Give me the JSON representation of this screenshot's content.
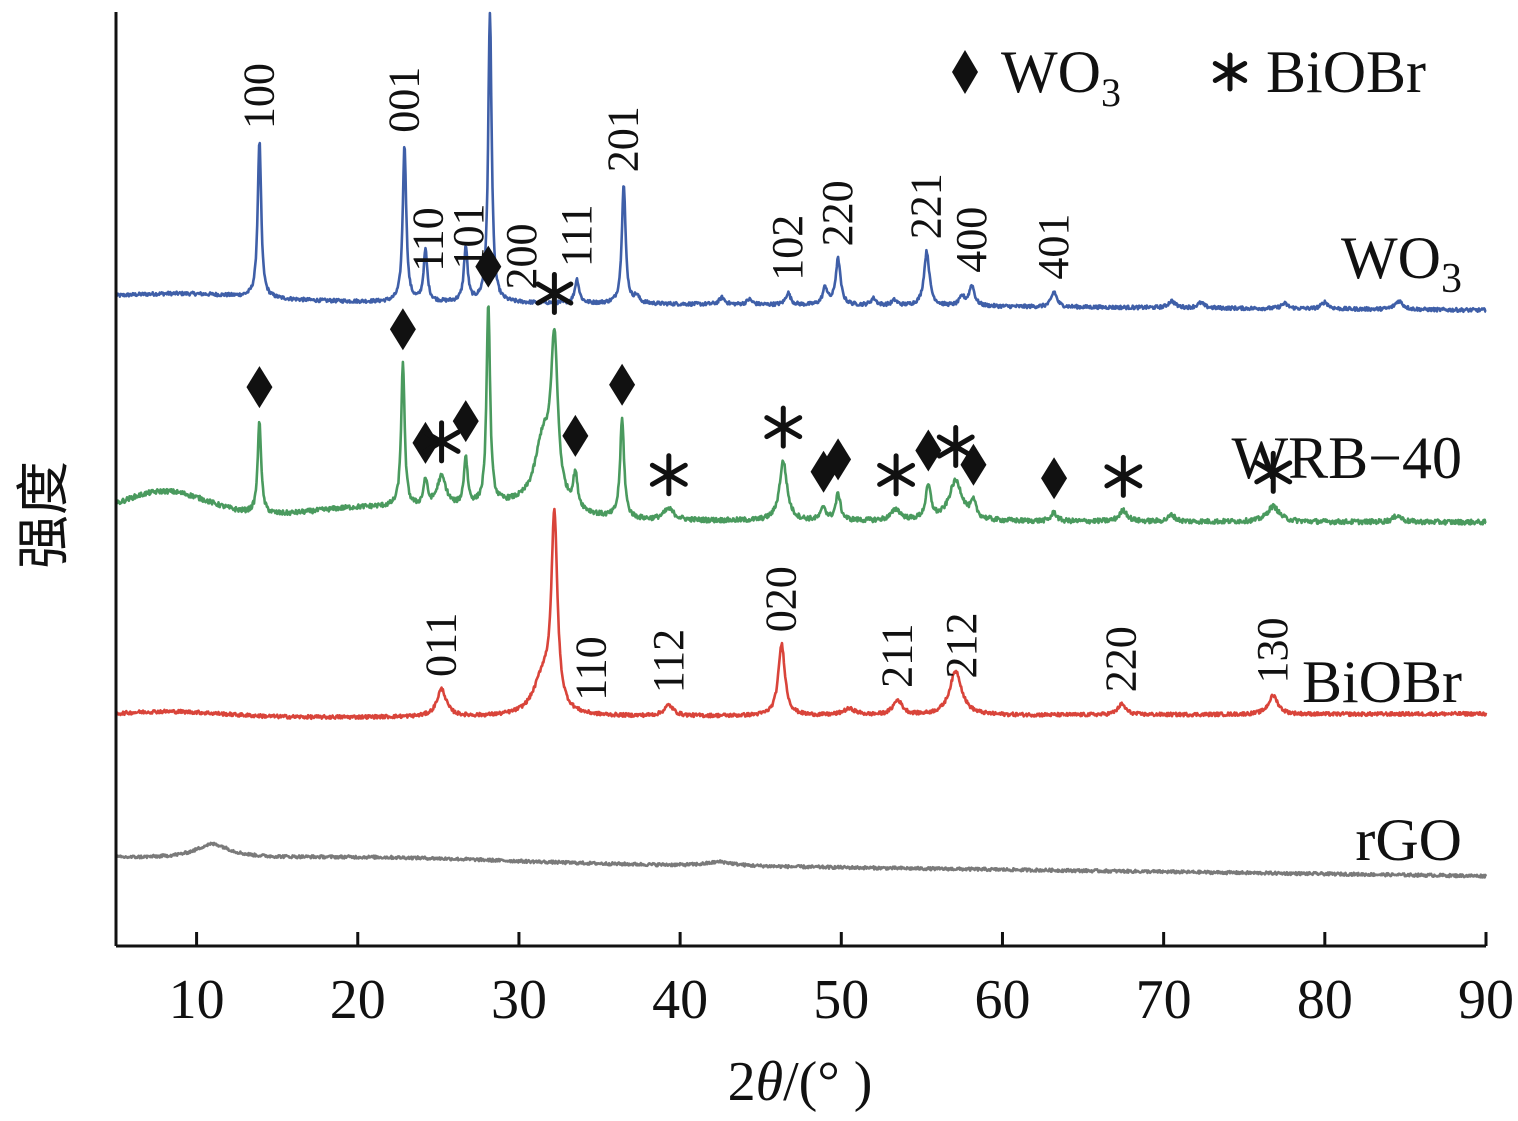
{
  "chart_data": {
    "type": "line",
    "xlabel_prefix": "2",
    "xlabel_theta": "θ",
    "xlabel_suffix": "/(° )",
    "ylabel": "强度",
    "xlim": [
      5,
      90
    ],
    "xticks": [
      10,
      20,
      30,
      40,
      50,
      60,
      70,
      80,
      90
    ],
    "legend": {
      "placement": "top-right",
      "items": [
        {
          "symbol": "♦",
          "text": "WO",
          "sub": "3"
        },
        {
          "symbol": "✱",
          "text": "BiOBr",
          "sub": ""
        }
      ]
    },
    "series": [
      {
        "name": "WO",
        "name_sub": "3",
        "color": "#3f5fa8",
        "baseline": 0.86,
        "baseline_end": 0.8,
        "noise": 0.006,
        "peaks": [
          {
            "x": 13.9,
            "h": 0.92,
            "w": 0.13
          },
          {
            "x": 22.9,
            "h": 0.92,
            "w": 0.13
          },
          {
            "x": 24.2,
            "h": 0.3,
            "w": 0.14
          },
          {
            "x": 26.7,
            "h": 0.32,
            "w": 0.14
          },
          {
            "x": 28.2,
            "h": 1.7,
            "w": 0.13
          },
          {
            "x": 33.6,
            "h": 0.14,
            "w": 0.16
          },
          {
            "x": 36.5,
            "h": 0.7,
            "w": 0.14
          },
          {
            "x": 37.3,
            "h": 0.04,
            "w": 0.18
          },
          {
            "x": 42.6,
            "h": 0.04,
            "w": 0.2
          },
          {
            "x": 44.3,
            "h": 0.03,
            "w": 0.2
          },
          {
            "x": 46.7,
            "h": 0.07,
            "w": 0.18
          },
          {
            "x": 49.0,
            "h": 0.1,
            "w": 0.18
          },
          {
            "x": 49.8,
            "h": 0.27,
            "w": 0.18
          },
          {
            "x": 52.0,
            "h": 0.04,
            "w": 0.2
          },
          {
            "x": 53.3,
            "h": 0.03,
            "w": 0.2
          },
          {
            "x": 55.3,
            "h": 0.32,
            "w": 0.2
          },
          {
            "x": 57.5,
            "h": 0.05,
            "w": 0.2
          },
          {
            "x": 58.1,
            "h": 0.12,
            "w": 0.2
          },
          {
            "x": 63.2,
            "h": 0.09,
            "w": 0.2
          },
          {
            "x": 70.5,
            "h": 0.04,
            "w": 0.25
          },
          {
            "x": 72.3,
            "h": 0.03,
            "w": 0.25
          },
          {
            "x": 77.5,
            "h": 0.03,
            "w": 0.25
          },
          {
            "x": 80.0,
            "h": 0.04,
            "w": 0.25
          },
          {
            "x": 84.6,
            "h": 0.05,
            "w": 0.3
          }
        ],
        "humps": [
          {
            "x": 9.0,
            "h": 0.04,
            "w": 6.0
          }
        ]
      },
      {
        "name": "WRB−40",
        "name_sub": "",
        "color": "#4a9a5e",
        "baseline": 0.56,
        "baseline_end": 0.55,
        "noise": 0.008,
        "peaks": [
          {
            "x": 13.9,
            "h": 0.42,
            "w": 0.13
          },
          {
            "x": 22.8,
            "h": 0.65,
            "w": 0.13
          },
          {
            "x": 24.2,
            "h": 0.12,
            "w": 0.15
          },
          {
            "x": 25.2,
            "h": 0.14,
            "w": 0.35
          },
          {
            "x": 26.7,
            "h": 0.22,
            "w": 0.14
          },
          {
            "x": 28.1,
            "h": 0.92,
            "w": 0.13
          },
          {
            "x": 31.5,
            "h": 0.3,
            "w": 0.6
          },
          {
            "x": 32.2,
            "h": 0.7,
            "w": 0.25
          },
          {
            "x": 33.5,
            "h": 0.15,
            "w": 0.16
          },
          {
            "x": 36.4,
            "h": 0.45,
            "w": 0.15
          },
          {
            "x": 39.3,
            "h": 0.05,
            "w": 0.4
          },
          {
            "x": 46.4,
            "h": 0.27,
            "w": 0.28
          },
          {
            "x": 48.9,
            "h": 0.06,
            "w": 0.18
          },
          {
            "x": 49.8,
            "h": 0.12,
            "w": 0.18
          },
          {
            "x": 53.4,
            "h": 0.05,
            "w": 0.35
          },
          {
            "x": 55.4,
            "h": 0.15,
            "w": 0.2
          },
          {
            "x": 57.1,
            "h": 0.18,
            "w": 0.5
          },
          {
            "x": 58.2,
            "h": 0.07,
            "w": 0.2
          },
          {
            "x": 63.2,
            "h": 0.04,
            "w": 0.2
          },
          {
            "x": 67.5,
            "h": 0.05,
            "w": 0.3
          },
          {
            "x": 70.5,
            "h": 0.03,
            "w": 0.25
          },
          {
            "x": 76.8,
            "h": 0.07,
            "w": 0.45
          },
          {
            "x": 84.5,
            "h": 0.03,
            "w": 0.3
          }
        ],
        "humps": [
          {
            "x": 8.0,
            "h": 0.13,
            "w": 4.0
          },
          {
            "x": 21.0,
            "h": 0.06,
            "w": 6.0
          },
          {
            "x": 30.0,
            "h": 0.06,
            "w": 4.0
          }
        ]
      },
      {
        "name": "BiOBr",
        "name_sub": "",
        "color": "#d9443a",
        "baseline": 0.24,
        "baseline_end": 0.26,
        "noise": 0.006,
        "peaks": [
          {
            "x": 25.2,
            "h": 0.13,
            "w": 0.35
          },
          {
            "x": 31.5,
            "h": 0.18,
            "w": 0.7
          },
          {
            "x": 32.2,
            "h": 0.9,
            "w": 0.22
          },
          {
            "x": 39.3,
            "h": 0.05,
            "w": 0.35
          },
          {
            "x": 46.3,
            "h": 0.34,
            "w": 0.25
          },
          {
            "x": 50.5,
            "h": 0.03,
            "w": 0.5
          },
          {
            "x": 53.5,
            "h": 0.07,
            "w": 0.35
          },
          {
            "x": 57.1,
            "h": 0.21,
            "w": 0.45
          },
          {
            "x": 67.4,
            "h": 0.05,
            "w": 0.3
          },
          {
            "x": 76.8,
            "h": 0.09,
            "w": 0.35
          }
        ],
        "humps": [
          {
            "x": 8.0,
            "h": 0.03,
            "w": 5.0
          }
        ]
      },
      {
        "name": "rGO",
        "name_sub": "",
        "color": "#7a7a7a",
        "baseline": 0.05,
        "baseline_end": -0.04,
        "noise": 0.005,
        "peaks": [
          {
            "x": 11.0,
            "h": 0.07,
            "w": 1.3
          },
          {
            "x": 42.5,
            "h": 0.02,
            "w": 1.0
          }
        ],
        "humps": [
          {
            "x": 22.0,
            "h": 0.02,
            "w": 10.0
          }
        ]
      }
    ],
    "peak_labels": [
      {
        "series": 0,
        "x": 13.9,
        "text": "100"
      },
      {
        "series": 0,
        "x": 22.9,
        "text": "001"
      },
      {
        "series": 0,
        "x": 24.4,
        "text": "110"
      },
      {
        "series": 0,
        "x": 26.9,
        "text": "101"
      },
      {
        "series": 0,
        "x": 30.2,
        "text": "200"
      },
      {
        "series": 0,
        "x": 33.6,
        "text": "111"
      },
      {
        "series": 0,
        "x": 36.5,
        "text": "201"
      },
      {
        "series": 0,
        "x": 46.7,
        "text": "102"
      },
      {
        "series": 0,
        "x": 49.8,
        "text": "220"
      },
      {
        "series": 0,
        "x": 55.3,
        "text": "221"
      },
      {
        "series": 0,
        "x": 58.1,
        "text": "400"
      },
      {
        "series": 0,
        "x": 63.2,
        "text": "401"
      },
      {
        "series": 2,
        "x": 25.2,
        "text": "011"
      },
      {
        "series": 2,
        "x": 34.5,
        "text": "110"
      },
      {
        "series": 2,
        "x": 39.3,
        "text": "112"
      },
      {
        "series": 2,
        "x": 46.3,
        "text": "020"
      },
      {
        "series": 2,
        "x": 53.5,
        "text": "211"
      },
      {
        "series": 2,
        "x": 57.5,
        "text": "212"
      },
      {
        "series": 2,
        "x": 67.4,
        "text": "220"
      },
      {
        "series": 2,
        "x": 76.8,
        "text": "130"
      }
    ],
    "markers": [
      {
        "type": "diamond",
        "x": 13.9
      },
      {
        "type": "diamond",
        "x": 22.8
      },
      {
        "type": "diamond",
        "x": 24.2
      },
      {
        "type": "star",
        "x": 25.2
      },
      {
        "type": "diamond",
        "x": 26.7
      },
      {
        "type": "diamond",
        "x": 28.1
      },
      {
        "type": "star",
        "x": 32.2
      },
      {
        "type": "diamond",
        "x": 33.5
      },
      {
        "type": "diamond",
        "x": 36.4
      },
      {
        "type": "star",
        "x": 39.3
      },
      {
        "type": "star",
        "x": 46.4
      },
      {
        "type": "diamond",
        "x": 48.9
      },
      {
        "type": "diamond",
        "x": 49.8
      },
      {
        "type": "star",
        "x": 53.4
      },
      {
        "type": "diamond",
        "x": 55.4
      },
      {
        "type": "star",
        "x": 57.1
      },
      {
        "type": "diamond",
        "x": 58.2
      },
      {
        "type": "diamond",
        "x": 63.2
      },
      {
        "type": "star",
        "x": 67.5
      },
      {
        "type": "star",
        "x": 76.8
      }
    ]
  }
}
